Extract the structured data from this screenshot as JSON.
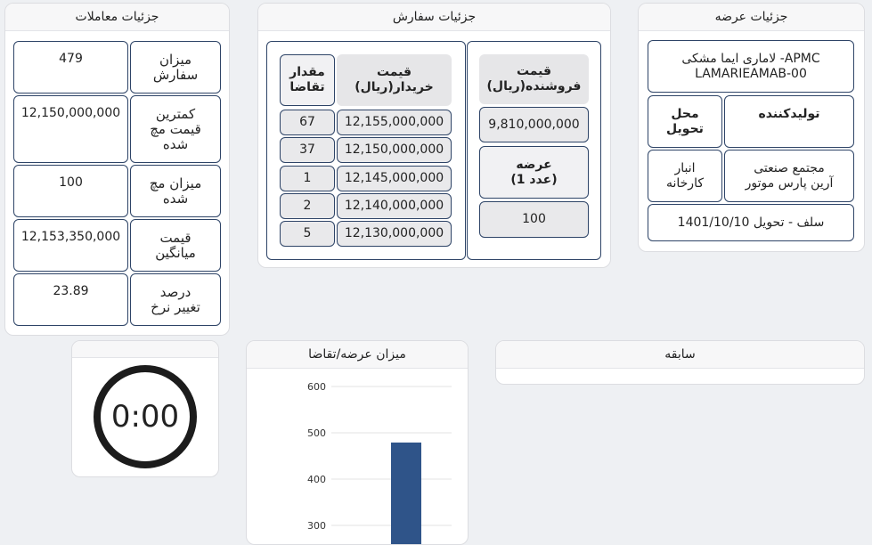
{
  "offer": {
    "title": "جزئیات عرضه",
    "product_line1": "لاماری ایما مشکی -APMC",
    "product_line2": "LAMARIEAMAB-00",
    "producer_label": "تولیدکننده",
    "delivery_place_label1": "محل",
    "delivery_place_label2": "تحویل",
    "producer_value1": "مجتمع صنعتی",
    "producer_value2": "آرین پارس موتور",
    "delivery_place_value1": "انبار",
    "delivery_place_value2": "کارخانه",
    "settlement": "سلف - تحویل 1401/10/10"
  },
  "order": {
    "title": "جزئیات سفارش",
    "seller_price_label1": "قیمت",
    "seller_price_label2": "فروشنده(ریال)",
    "seller_price_value": "9,810,000,000",
    "supply_label1": "عرضه",
    "supply_label2": "(1 عدد)",
    "supply_value": "100",
    "buyer_price_label1": "قیمت",
    "buyer_price_label2": "خریدار(ریال)",
    "demand_qty_label1": "مقدار",
    "demand_qty_label2": "تقاضا",
    "bids": [
      {
        "price": "12,155,000,000",
        "qty": "67"
      },
      {
        "price": "12,150,000,000",
        "qty": "37"
      },
      {
        "price": "12,145,000,000",
        "qty": "1"
      },
      {
        "price": "12,140,000,000",
        "qty": "2"
      },
      {
        "price": "12,130,000,000",
        "qty": "5"
      }
    ]
  },
  "trades": {
    "title": "جزئیات معاملات",
    "rows": [
      {
        "label1": "میزان",
        "label2": "سفارش",
        "label3": "",
        "value": "479"
      },
      {
        "label1": "کمترین",
        "label2": "قیمت مچ",
        "label3": "شده",
        "value": "12,150,000,000"
      },
      {
        "label1": "میزان مچ",
        "label2": "شده",
        "label3": "",
        "value": "100"
      },
      {
        "label1": "قیمت",
        "label2": "میانگین",
        "label3": "",
        "value": "12,153,350,000"
      },
      {
        "label1": "درصد",
        "label2": "تغییر نرخ",
        "label3": "",
        "value": "23.89"
      }
    ]
  },
  "history": {
    "title": "سابقه"
  },
  "supply_demand": {
    "title": "میزان عرضه/تقاضا"
  },
  "timer": {
    "value": "0:00"
  },
  "colors": {
    "bar": "#2f5489",
    "border": "#2e4467",
    "timer_ring": "#1c1c1c"
  },
  "chart_data": {
    "type": "bar",
    "title": "",
    "xlabel": "",
    "ylabel": "",
    "ylim": [
      0,
      600
    ],
    "yticks": [
      600,
      500,
      400,
      300
    ],
    "categories": [
      ""
    ],
    "series": [
      {
        "values": [
          479
        ]
      }
    ]
  }
}
